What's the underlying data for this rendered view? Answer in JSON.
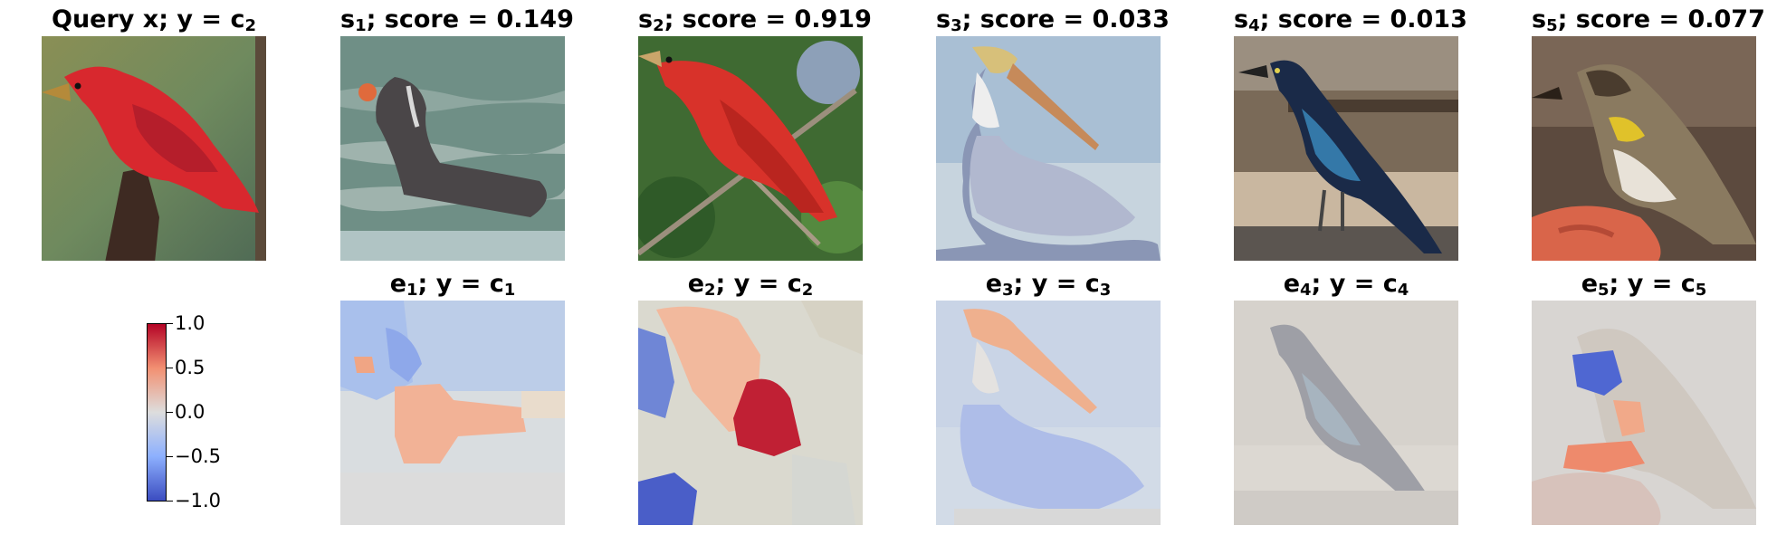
{
  "query": {
    "title_text": "Query x; y = c",
    "title_sub": "2",
    "icon": "red-bird-photo"
  },
  "samples": [
    {
      "prefix": "s",
      "index": "1",
      "score_text": "; score = 0.149",
      "icon": "grebe-photo"
    },
    {
      "prefix": "s",
      "index": "2",
      "score_text": "; score = 0.919",
      "icon": "red-tanager-photo"
    },
    {
      "prefix": "s",
      "index": "3",
      "score_text": "; score = 0.033",
      "icon": "pelican-photo"
    },
    {
      "prefix": "s",
      "index": "4",
      "score_text": "; score = 0.013",
      "icon": "grackle-photo"
    },
    {
      "prefix": "s",
      "index": "5",
      "score_text": "; score = 0.077",
      "icon": "warbler-photo"
    }
  ],
  "explanations": [
    {
      "prefix": "e",
      "index": "1",
      "mid": "; y = c",
      "cls": "1",
      "icon": "heatmap-grebe"
    },
    {
      "prefix": "e",
      "index": "2",
      "mid": "; y = c",
      "cls": "2",
      "icon": "heatmap-tanager"
    },
    {
      "prefix": "e",
      "index": "3",
      "mid": "; y = c",
      "cls": "3",
      "icon": "heatmap-pelican"
    },
    {
      "prefix": "e",
      "index": "4",
      "mid": "; y = c",
      "cls": "4",
      "icon": "heatmap-grackle"
    },
    {
      "prefix": "e",
      "index": "5",
      "mid": "; y = c",
      "cls": "5",
      "icon": "heatmap-warbler"
    }
  ],
  "colorbar": {
    "ticks": [
      "1.0",
      "0.5",
      "0.0",
      "−0.5",
      "−1.0"
    ],
    "colors": {
      "high": "#b40426",
      "mid": "#dddddd",
      "low": "#3b4cc0"
    }
  }
}
